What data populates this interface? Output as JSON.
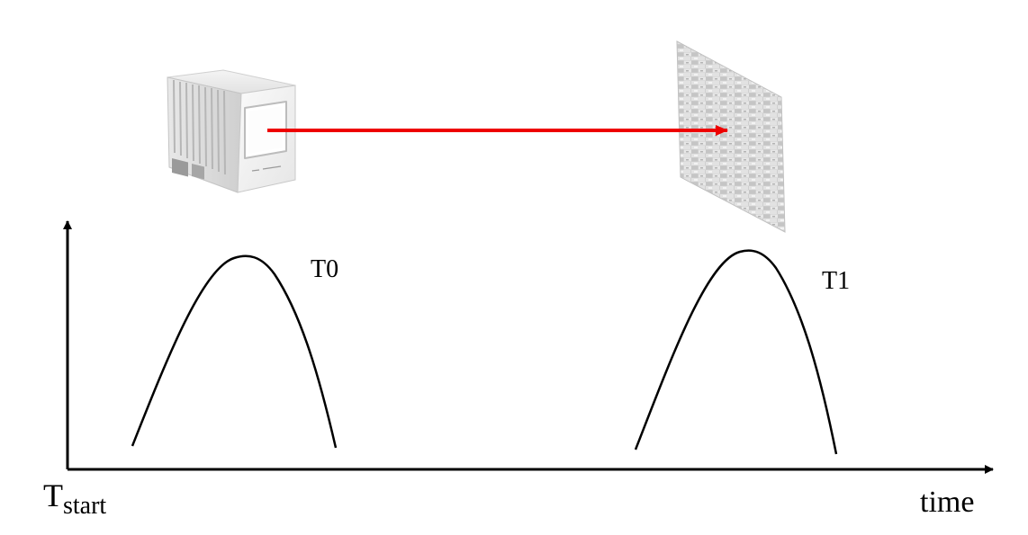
{
  "labels": {
    "pulse_emit": "T0",
    "pulse_return": "T1",
    "start_main": "T",
    "start_sub": "start",
    "x_axis": "time"
  },
  "objects": {
    "sensor": "lidar-device-icon",
    "target": "wall-panel-icon"
  },
  "colors": {
    "beam": "#ee0000",
    "axis": "#000000",
    "pulse": "#000000",
    "background": "#ffffff"
  }
}
